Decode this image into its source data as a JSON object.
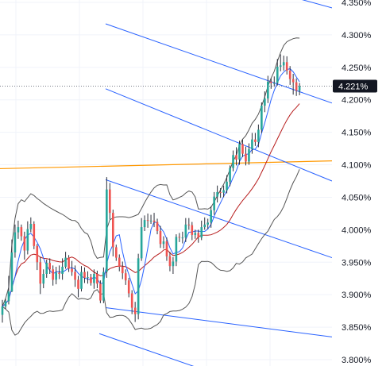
{
  "chart_data": {
    "type": "candlestick",
    "instrument": "yield",
    "y_axis": {
      "position": "right",
      "range": [
        3.79,
        4.355
      ],
      "ticks": [
        "4.350%",
        "4.300%",
        "4.250%",
        "4.200%",
        "4.150%",
        "4.100%",
        "4.050%",
        "4.000%",
        "3.950%",
        "3.900%",
        "3.850%",
        "3.800%"
      ],
      "tick_values": [
        4.35,
        4.3,
        4.25,
        4.2,
        4.15,
        4.1,
        4.05,
        4.0,
        3.95,
        3.9,
        3.85,
        3.8
      ]
    },
    "grid": true,
    "current_price": {
      "label": "4.221%",
      "value": 4.221
    },
    "colors": {
      "up": "#26a69a",
      "down": "#ef5350",
      "wick": "#2a2e39",
      "channel": "#2962ff",
      "horizontal_level": "#ff9800",
      "fast_ma": "#2962ff",
      "slow_ma": "#b71c1c",
      "bollinger": "#555555",
      "price_tag": "#131722"
    },
    "horizontal_level": {
      "y_left": 4.094,
      "y_right": 4.106
    },
    "channel_lines": [
      {
        "x1": 133,
        "y1": 4.317,
        "x2": 418,
        "y2": 4.195
      },
      {
        "x1": 133,
        "y1": 4.217,
        "x2": 418,
        "y2": 4.075
      },
      {
        "x1": 133,
        "y1": 4.077,
        "x2": 418,
        "y2": 3.957
      },
      {
        "x1": 133,
        "y1": 3.88,
        "x2": 418,
        "y2": 3.835
      },
      {
        "x1": 125,
        "y1": 3.84,
        "x2": 255,
        "y2": 3.785
      },
      {
        "x1": 375,
        "y1": 4.356,
        "x2": 476,
        "y2": 4.322
      }
    ],
    "candles": {
      "x_start": 3,
      "x_step": 3.98,
      "close": [
        3.882,
        3.89,
        3.905,
        3.965,
        3.996,
        4.004,
        3.99,
        3.968,
        4.001,
        4.009,
        3.975,
        3.95,
        3.917,
        3.932,
        3.949,
        3.939,
        3.923,
        3.934,
        3.932,
        3.943,
        3.957,
        3.94,
        3.935,
        3.923,
        3.909,
        3.935,
        3.926,
        3.927,
        3.918,
        3.932,
        3.917,
        3.891,
        3.935,
        4.062,
        4.026,
        3.973,
        3.957,
        3.943,
        3.933,
        3.922,
        3.902,
        3.88,
        3.87,
        3.956,
        4.004,
        4.015,
        4.014,
        4.014,
        4.012,
        3.998,
        3.978,
        3.982,
        3.959,
        3.944,
        3.951,
        3.989,
        3.988,
        3.988,
        4.008,
        4.007,
        3.992,
        3.995,
        3.988,
        4.004,
        4.008,
        4.011,
        4.03,
        4.051,
        4.058,
        4.057,
        4.061,
        4.074,
        4.095,
        4.115,
        4.108,
        4.132,
        4.117,
        4.105,
        4.124,
        4.139,
        4.135,
        4.154,
        4.191,
        4.202,
        4.228,
        4.226,
        4.226,
        4.251,
        4.253,
        4.258,
        4.245,
        4.232,
        4.227,
        4.214,
        4.221
      ],
      "open": [
        3.869,
        3.882,
        3.89,
        3.905,
        3.965,
        3.996,
        4.004,
        3.99,
        3.968,
        4.001,
        4.009,
        3.975,
        3.95,
        3.917,
        3.932,
        3.949,
        3.939,
        3.923,
        3.934,
        3.932,
        3.943,
        3.957,
        3.94,
        3.935,
        3.923,
        3.909,
        3.935,
        3.926,
        3.927,
        3.918,
        3.932,
        3.917,
        3.891,
        3.935,
        4.062,
        4.026,
        3.973,
        3.957,
        3.943,
        3.933,
        3.922,
        3.902,
        3.88,
        3.87,
        3.956,
        4.004,
        4.015,
        4.014,
        4.014,
        4.012,
        3.998,
        3.978,
        3.982,
        3.959,
        3.944,
        3.951,
        3.989,
        3.988,
        3.988,
        4.008,
        4.007,
        3.992,
        3.995,
        3.988,
        4.004,
        4.008,
        4.011,
        4.03,
        4.051,
        4.058,
        4.057,
        4.061,
        4.074,
        4.095,
        4.115,
        4.108,
        4.132,
        4.117,
        4.105,
        4.124,
        4.139,
        4.135,
        4.154,
        4.191,
        4.202,
        4.228,
        4.226,
        4.226,
        4.251,
        4.253,
        4.258,
        4.245,
        4.232,
        4.227,
        4.214
      ],
      "high": [
        3.892,
        3.894,
        3.929,
        3.985,
        4.008,
        4.014,
        4.008,
        3.997,
        4.013,
        4.019,
        4.013,
        3.978,
        3.958,
        3.939,
        3.954,
        3.956,
        3.945,
        3.943,
        3.945,
        3.956,
        3.966,
        3.961,
        3.952,
        3.945,
        3.929,
        3.944,
        3.942,
        3.936,
        3.932,
        3.939,
        3.937,
        3.922,
        3.942,
        4.081,
        4.072,
        4.031,
        3.977,
        3.962,
        3.951,
        3.939,
        3.926,
        3.907,
        3.889,
        3.963,
        4.018,
        4.022,
        4.025,
        4.023,
        4.026,
        4.017,
        4.006,
        3.99,
        3.988,
        3.966,
        3.958,
        3.993,
        3.995,
        3.997,
        4.018,
        4.018,
        4.012,
        4.0,
        4.0,
        4.014,
        4.019,
        4.017,
        4.036,
        4.058,
        4.068,
        4.064,
        4.068,
        4.084,
        4.099,
        4.122,
        4.127,
        4.137,
        4.139,
        4.128,
        4.133,
        4.149,
        4.149,
        4.162,
        4.196,
        4.213,
        4.237,
        4.233,
        4.236,
        4.263,
        4.27,
        4.268,
        4.267,
        4.252,
        4.24,
        4.233,
        4.226
      ],
      "low": [
        3.857,
        3.878,
        3.885,
        3.904,
        3.957,
        3.986,
        3.983,
        3.954,
        3.962,
        3.996,
        3.97,
        3.938,
        3.901,
        3.91,
        3.926,
        3.932,
        3.914,
        3.916,
        3.924,
        3.923,
        3.94,
        3.935,
        3.929,
        3.912,
        3.896,
        3.905,
        3.918,
        3.917,
        3.914,
        3.909,
        3.91,
        3.887,
        3.887,
        3.926,
        4.016,
        3.959,
        3.952,
        3.936,
        3.924,
        3.915,
        3.896,
        3.87,
        3.858,
        3.862,
        3.952,
        3.998,
        4.003,
        4.009,
        4.004,
        3.993,
        3.972,
        3.971,
        3.952,
        3.936,
        3.932,
        3.944,
        3.981,
        3.979,
        3.981,
        4.0,
        3.984,
        3.986,
        3.98,
        3.984,
        4.0,
        4.001,
        4.003,
        4.023,
        4.042,
        4.049,
        4.05,
        4.056,
        4.067,
        4.09,
        4.099,
        4.1,
        4.112,
        4.099,
        4.1,
        4.117,
        4.129,
        4.127,
        4.149,
        4.181,
        4.195,
        4.217,
        4.22,
        4.222,
        4.244,
        4.245,
        4.239,
        4.223,
        4.208,
        4.206,
        4.207
      ]
    }
  }
}
